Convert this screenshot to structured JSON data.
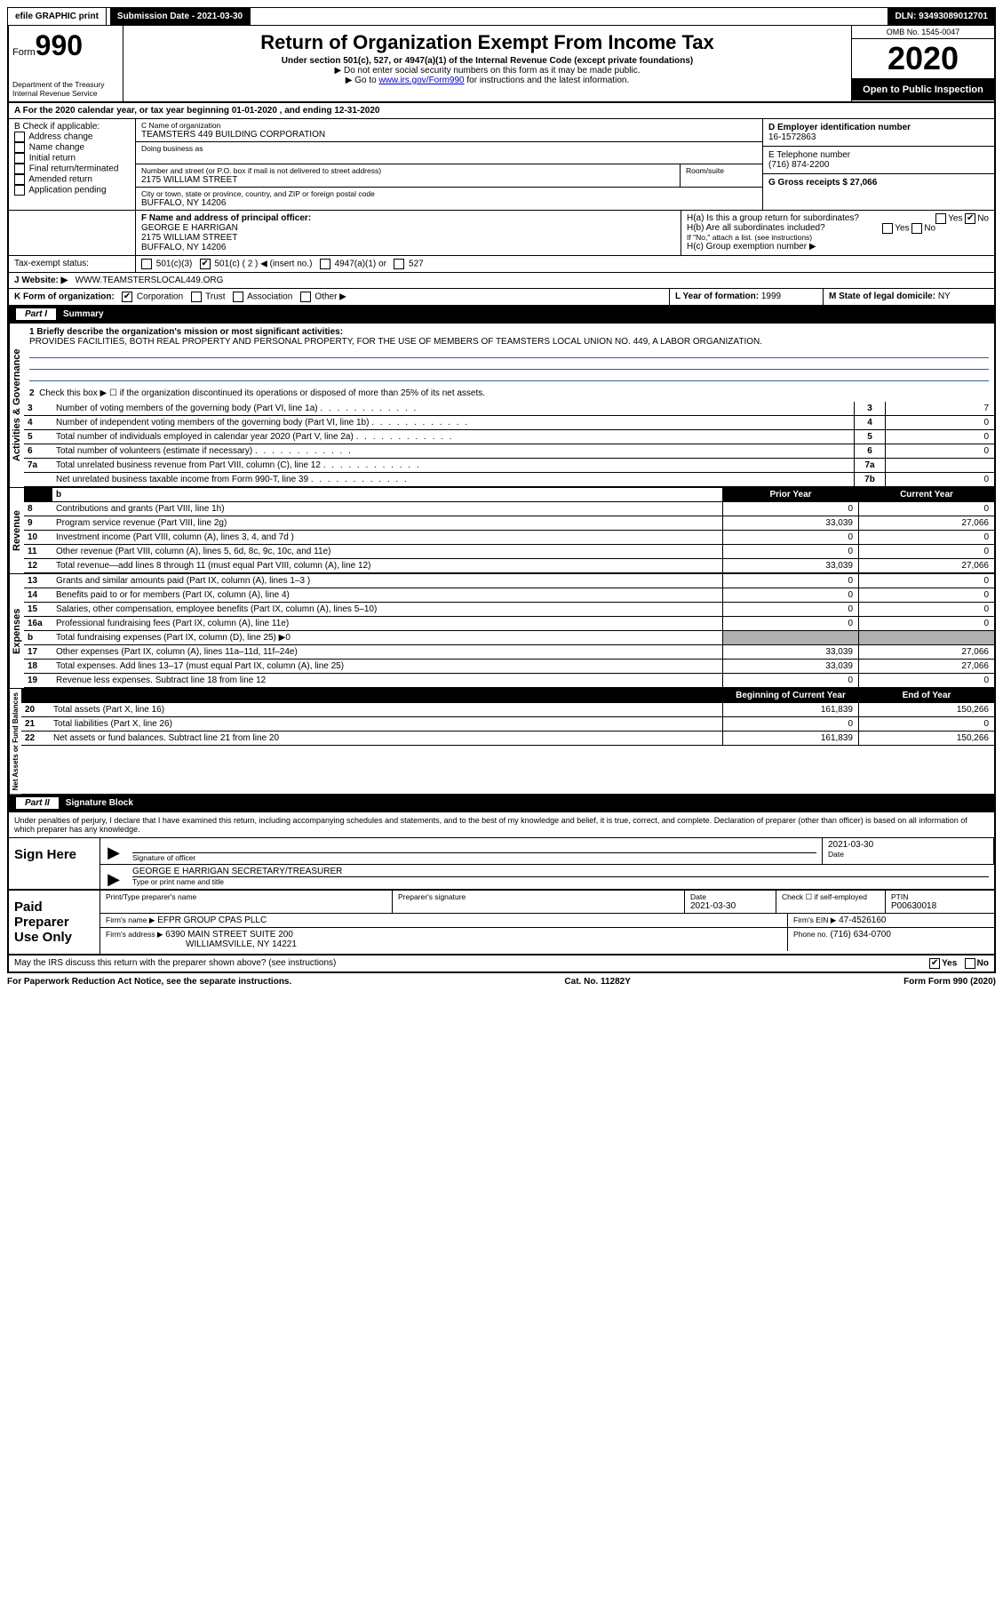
{
  "topbar": {
    "efile": "efile GRAPHIC print",
    "submission_label": "Submission Date - 2021-03-30",
    "dln": "DLN: 93493089012701"
  },
  "header": {
    "form_word": "Form",
    "form_number": "990",
    "title": "Return of Organization Exempt From Income Tax",
    "subtitle": "Under section 501(c), 527, or 4947(a)(1) of the Internal Revenue Code (except private foundations)",
    "note1": "▶ Do not enter social security numbers on this form as it may be made public.",
    "note2_pre": "▶ Go to ",
    "note2_link": "www.irs.gov/Form990",
    "note2_post": " for instructions and the latest information.",
    "dept": "Department of the Treasury",
    "irs": "Internal Revenue Service",
    "omb": "OMB No. 1545-0047",
    "year": "2020",
    "open": "Open to Public Inspection"
  },
  "lineA": {
    "text_pre": "A For the 2020 calendar year, or tax year beginning ",
    "begin": "01-01-2020",
    "mid": " , and ending ",
    "end": "12-31-2020"
  },
  "boxB": {
    "label": "B Check if applicable:",
    "items": [
      "Address change",
      "Name change",
      "Initial return",
      "Final return/terminated",
      "Amended return",
      "Application pending"
    ]
  },
  "boxC": {
    "label": "C Name of organization",
    "name": "TEAMSTERS 449 BUILDING CORPORATION",
    "dba_label": "Doing business as",
    "addr_label": "Number and street (or P.O. box if mail is not delivered to street address)",
    "room_label": "Room/suite",
    "street": "2175 WILLIAM STREET",
    "city_label": "City or town, state or province, country, and ZIP or foreign postal code",
    "city": "BUFFALO, NY  14206"
  },
  "boxD": {
    "label": "D Employer identification number",
    "value": "16-1572863"
  },
  "boxE": {
    "label": "E Telephone number",
    "value": "(716) 874-2200"
  },
  "boxG": {
    "label": "G Gross receipts $",
    "value": "27,066"
  },
  "boxF": {
    "label": "F Name and address of principal officer:",
    "name": "GEORGE E HARRIGAN",
    "street": "2175 WILLIAM STREET",
    "city": "BUFFALO, NY  14206"
  },
  "boxH": {
    "a": "H(a)  Is this a group return for subordinates?",
    "b": "H(b)  Are all subordinates included?",
    "b_note": "If \"No,\" attach a list. (see instructions)",
    "c": "H(c)  Group exemption number ▶",
    "yes": "Yes",
    "no": "No"
  },
  "boxI": {
    "label": "Tax-exempt status:",
    "opt1": "501(c)(3)",
    "opt2": "501(c) ( 2 ) ◀ (insert no.)",
    "opt3": "4947(a)(1) or",
    "opt4": "527"
  },
  "boxJ": {
    "label": "J   Website: ▶",
    "value": "WWW.TEAMSTERSLOCAL449.ORG"
  },
  "boxK": {
    "label": "K Form of organization:",
    "opts": [
      "Corporation",
      "Trust",
      "Association",
      "Other ▶"
    ]
  },
  "boxL": {
    "label": "L Year of formation:",
    "value": "1999"
  },
  "boxM": {
    "label": "M State of legal domicile:",
    "value": "NY"
  },
  "part1": {
    "tab": "Part I",
    "title": "Summary",
    "line1_label": "1  Briefly describe the organization's mission or most significant activities:",
    "line1_text": "PROVIDES FACILITIES, BOTH REAL PROPERTY AND PERSONAL PROPERTY, FOR THE USE OF MEMBERS OF TEAMSTERS LOCAL UNION NO. 449, A LABOR ORGANIZATION.",
    "line2": "Check this box ▶ ☐  if the organization discontinued its operations or disposed of more than 25% of its net assets.",
    "governance_label": "Activities & Governance",
    "lines_gov": [
      {
        "n": "3",
        "desc": "Number of voting members of the governing body (Part VI, line 1a)",
        "box": "3",
        "val": "7"
      },
      {
        "n": "4",
        "desc": "Number of independent voting members of the governing body (Part VI, line 1b)",
        "box": "4",
        "val": "0"
      },
      {
        "n": "5",
        "desc": "Total number of individuals employed in calendar year 2020 (Part V, line 2a)",
        "box": "5",
        "val": "0"
      },
      {
        "n": "6",
        "desc": "Total number of volunteers (estimate if necessary)",
        "box": "6",
        "val": "0"
      },
      {
        "n": "7a",
        "desc": "Total unrelated business revenue from Part VIII, column (C), line 12",
        "box": "7a",
        "val": ""
      },
      {
        "n": "",
        "desc": "Net unrelated business taxable income from Form 990-T, line 39",
        "box": "7b",
        "val": "0"
      }
    ],
    "col_prior": "Prior Year",
    "col_current": "Current Year",
    "revenue_label": "Revenue",
    "lines_rev": [
      {
        "n": "8",
        "desc": "Contributions and grants (Part VIII, line 1h)",
        "prior": "0",
        "cur": "0"
      },
      {
        "n": "9",
        "desc": "Program service revenue (Part VIII, line 2g)",
        "prior": "33,039",
        "cur": "27,066"
      },
      {
        "n": "10",
        "desc": "Investment income (Part VIII, column (A), lines 3, 4, and 7d )",
        "prior": "0",
        "cur": "0"
      },
      {
        "n": "11",
        "desc": "Other revenue (Part VIII, column (A), lines 5, 6d, 8c, 9c, 10c, and 11e)",
        "prior": "0",
        "cur": "0"
      },
      {
        "n": "12",
        "desc": "Total revenue—add lines 8 through 11 (must equal Part VIII, column (A), line 12)",
        "prior": "33,039",
        "cur": "27,066"
      }
    ],
    "expenses_label": "Expenses",
    "lines_exp": [
      {
        "n": "13",
        "desc": "Grants and similar amounts paid (Part IX, column (A), lines 1–3 )",
        "prior": "0",
        "cur": "0"
      },
      {
        "n": "14",
        "desc": "Benefits paid to or for members (Part IX, column (A), line 4)",
        "prior": "0",
        "cur": "0"
      },
      {
        "n": "15",
        "desc": "Salaries, other compensation, employee benefits (Part IX, column (A), lines 5–10)",
        "prior": "0",
        "cur": "0"
      },
      {
        "n": "16a",
        "desc": "Professional fundraising fees (Part IX, column (A), line 11e)",
        "prior": "0",
        "cur": "0"
      },
      {
        "n": "b",
        "desc": "Total fundraising expenses (Part IX, column (D), line 25) ▶0",
        "prior": "",
        "cur": "",
        "shaded": true
      },
      {
        "n": "17",
        "desc": "Other expenses (Part IX, column (A), lines 11a–11d, 11f–24e)",
        "prior": "33,039",
        "cur": "27,066"
      },
      {
        "n": "18",
        "desc": "Total expenses. Add lines 13–17 (must equal Part IX, column (A), line 25)",
        "prior": "33,039",
        "cur": "27,066"
      },
      {
        "n": "19",
        "desc": "Revenue less expenses. Subtract line 18 from line 12",
        "prior": "0",
        "cur": "0"
      }
    ],
    "net_label": "Net Assets or Fund Balances",
    "col_begin": "Beginning of Current Year",
    "col_end": "End of Year",
    "lines_net": [
      {
        "n": "20",
        "desc": "Total assets (Part X, line 16)",
        "prior": "161,839",
        "cur": "150,266"
      },
      {
        "n": "21",
        "desc": "Total liabilities (Part X, line 26)",
        "prior": "0",
        "cur": "0"
      },
      {
        "n": "22",
        "desc": "Net assets or fund balances. Subtract line 21 from line 20",
        "prior": "161,839",
        "cur": "150,266"
      }
    ]
  },
  "part2": {
    "tab": "Part II",
    "title": "Signature Block",
    "declaration": "Under penalties of perjury, I declare that I have examined this return, including accompanying schedules and statements, and to the best of my knowledge and belief, it is true, correct, and complete. Declaration of preparer (other than officer) is based on all information of which preparer has any knowledge."
  },
  "sign": {
    "label": "Sign Here",
    "sig_label": "Signature of officer",
    "date": "2021-03-30",
    "date_label": "Date",
    "name": "GEORGE E HARRIGAN  SECRETARY/TREASURER",
    "name_label": "Type or print name and title"
  },
  "preparer": {
    "label": "Paid Preparer Use Only",
    "print_label": "Print/Type preparer's name",
    "sig_label": "Preparer's signature",
    "date_label": "Date",
    "date": "2021-03-30",
    "check_label": "Check ☐ if self-employed",
    "ptin_label": "PTIN",
    "ptin": "P00630018",
    "firm_name_label": "Firm's name     ▶",
    "firm_name": "EFPR GROUP CPAS PLLC",
    "firm_ein_label": "Firm's EIN ▶",
    "firm_ein": "47-4526160",
    "firm_addr_label": "Firm's address ▶",
    "firm_addr1": "6390 MAIN STREET SUITE 200",
    "firm_addr2": "WILLIAMSVILLE, NY  14221",
    "phone_label": "Phone no.",
    "phone": "(716) 634-0700"
  },
  "footer": {
    "discuss": "May the IRS discuss this return with the preparer shown above? (see instructions)",
    "yes": "Yes",
    "no": "No",
    "paperwork": "For Paperwork Reduction Act Notice, see the separate instructions.",
    "cat": "Cat. No. 11282Y",
    "form": "Form 990 (2020)"
  }
}
